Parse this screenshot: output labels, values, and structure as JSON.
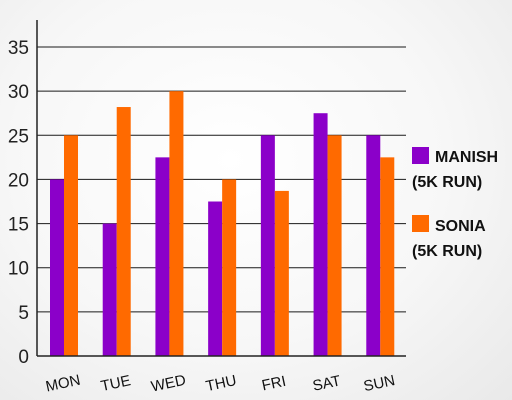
{
  "chart_data": {
    "type": "bar",
    "categories": [
      "MON",
      "TUE",
      "WED",
      "THU",
      "FRI",
      "SAT",
      "SUN"
    ],
    "series": [
      {
        "name": "MANISH (5K RUN)",
        "line1": "MANISH",
        "line2": "(5K RUN)",
        "color": "#8b00c9",
        "values": [
          20,
          15,
          22.5,
          17.5,
          25,
          27.5,
          25
        ]
      },
      {
        "name": "SONIA (5K RUN)",
        "line1": "SONIA",
        "line2": "(5K RUN)",
        "color": "#ff6a00",
        "values": [
          25,
          28.2,
          30,
          20,
          18.7,
          25,
          22.5
        ]
      }
    ],
    "ylim": [
      0,
      35
    ],
    "yticks": [
      0,
      5,
      10,
      15,
      20,
      25,
      30,
      35
    ],
    "title": "",
    "xlabel": "",
    "ylabel": "",
    "grid": true,
    "legend": "right"
  }
}
